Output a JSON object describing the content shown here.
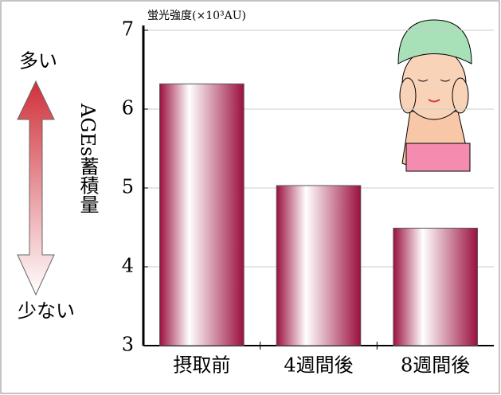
{
  "chart_data": {
    "type": "bar",
    "y_label": "蛍光強度(×10³AU)",
    "annotation_high": "多い",
    "annotation_low": "少ない",
    "annotation_axis": "AGEs蓄積量",
    "categories": [
      "摂取前",
      "4週間後",
      "8週間後"
    ],
    "values": [
      6.32,
      5.03,
      4.49
    ],
    "color": "#9b1040",
    "ylim": [
      3,
      7
    ],
    "yticks": [
      3,
      4,
      5,
      6,
      7
    ],
    "grid": true
  }
}
